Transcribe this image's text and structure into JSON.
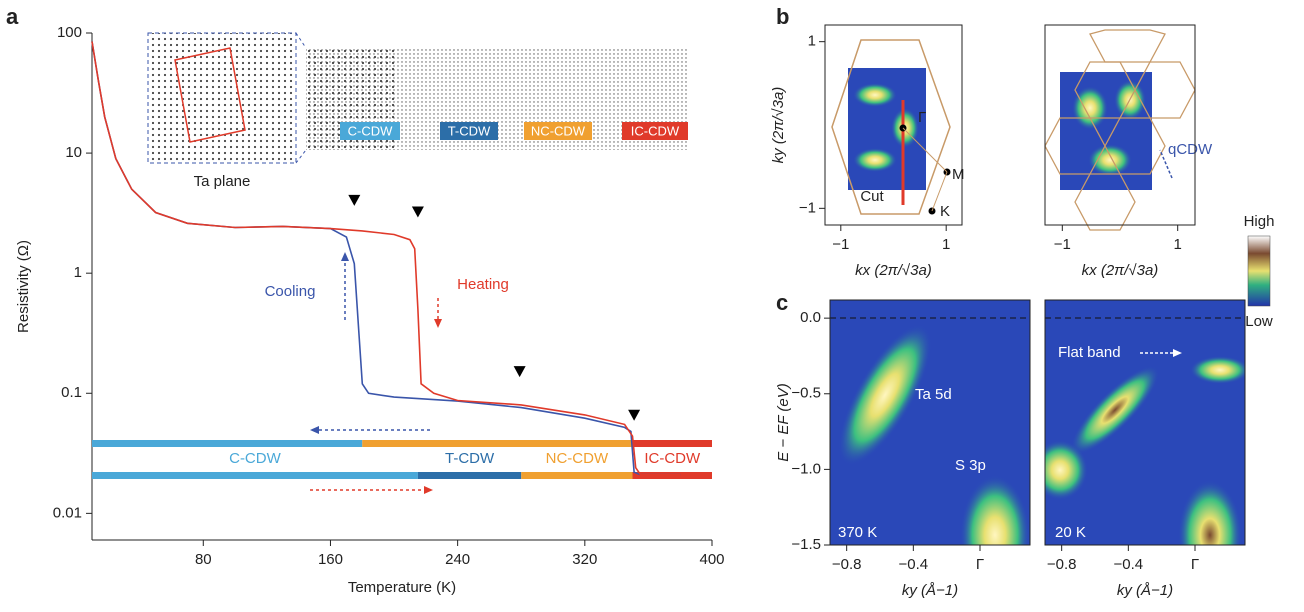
{
  "panel_labels": [
    "a",
    "b",
    "c"
  ],
  "colorbar": {
    "high": "High",
    "low": "Low"
  },
  "inset": {
    "lattice_label": "Ta plane",
    "phases": [
      {
        "label": "C-CDW",
        "color": "#4aa8d8"
      },
      {
        "label": "T-CDW",
        "color": "#2c6ea8"
      },
      {
        "label": "NC-CDW",
        "color": "#f0a030"
      },
      {
        "label": "IC-CDW",
        "color": "#e03a2a"
      }
    ]
  },
  "chart_data": [
    {
      "type": "line",
      "xlabel": "Temperature (K)",
      "ylabel": "Resistivity (Ω)",
      "log_y": true,
      "xlim": [
        10,
        400
      ],
      "ylim": [
        0.006,
        100
      ],
      "xticks": [
        80,
        160,
        240,
        320,
        400
      ],
      "yticks": [
        0.01,
        0.1,
        1,
        10,
        100
      ],
      "series": [
        {
          "name": "Cooling",
          "color": "#3a55aa",
          "x": [
            10,
            14,
            18,
            25,
            35,
            50,
            70,
            100,
            130,
            160,
            170,
            175,
            178,
            180,
            184,
            200,
            240,
            280,
            320,
            345,
            349,
            351,
            355,
            380
          ],
          "values": [
            85,
            40,
            20,
            9,
            5,
            3.2,
            2.6,
            2.4,
            2.45,
            2.35,
            2.0,
            1.2,
            0.3,
            0.12,
            0.1,
            0.093,
            0.086,
            0.076,
            0.062,
            0.052,
            0.048,
            0.022,
            0.021,
            0.021
          ]
        },
        {
          "name": "Heating",
          "color": "#e03a2a",
          "x": [
            10,
            14,
            18,
            25,
            35,
            50,
            70,
            100,
            130,
            160,
            180,
            200,
            210,
            213,
            215,
            217,
            225,
            240,
            280,
            320,
            345,
            350,
            352,
            355,
            380
          ],
          "values": [
            85,
            40,
            20,
            9,
            5,
            3.2,
            2.6,
            2.4,
            2.45,
            2.35,
            2.25,
            2.1,
            1.9,
            1.6,
            0.5,
            0.12,
            0.1,
            0.087,
            0.08,
            0.066,
            0.055,
            0.044,
            0.024,
            0.021,
            0.021
          ]
        }
      ],
      "transition_markers": [
        {
          "x": 175,
          "y": 4
        },
        {
          "x": 215,
          "y": 3.2
        },
        {
          "x": 279,
          "y": 0.15
        },
        {
          "x": 351,
          "y": 0.065
        }
      ],
      "phase_rows": [
        [
          {
            "start": 10,
            "end": 180,
            "color": "#4aa8d8"
          },
          {
            "start": 180,
            "end": 350,
            "color": "#f0a030"
          },
          {
            "start": 350,
            "end": 400,
            "color": "#e03a2a"
          }
        ],
        [
          {
            "label": "C-CDW",
            "start": 10,
            "end": 215,
            "color": "#4aa8d8"
          },
          {
            "label": "T-CDW",
            "start": 215,
            "end": 280,
            "color": "#2c6ea8"
          },
          {
            "label": "NC-CDW",
            "start": 280,
            "end": 350,
            "color": "#f0a030"
          },
          {
            "label": "IC-CDW",
            "start": 350,
            "end": 400,
            "color": "#e03a2a"
          }
        ]
      ]
    },
    {
      "type": "map",
      "xlabel": "kx (2π/√3a)",
      "ylabel": "ky (2π/√3a)",
      "xlim": [
        -1.3,
        1.3
      ],
      "ylim": [
        -1.2,
        1.2
      ],
      "xticks": [
        {
          "value": -1,
          "label": "−1"
        },
        1
      ],
      "yticks": [
        {
          "value": -1,
          "label": "−1"
        },
        1
      ],
      "annotations": [
        "Γ",
        "M",
        "K",
        "Cut"
      ]
    },
    {
      "type": "map",
      "xlabel": "kx (2π/√3a)",
      "xlim": [
        -1.3,
        1.3
      ],
      "ylim": [
        -1.2,
        1.2
      ],
      "xticks": [
        {
          "value": -1,
          "label": "−1"
        },
        1
      ],
      "annotations": [
        "qCDW"
      ]
    },
    {
      "type": "map",
      "xlabel": "ky (Å−1)",
      "ylabel": "E − EF (eV)",
      "xlim": [
        -0.9,
        0.3
      ],
      "ylim": [
        -1.5,
        0.12
      ],
      "xticks": [
        {
          "value": -0.8,
          "label": "−0.8"
        },
        {
          "value": -0.4,
          "label": "−0.4"
        },
        {
          "value": 0,
          "label": "Γ"
        }
      ],
      "yticks": [
        {
          "value": 0,
          "label": "0.0"
        },
        {
          "value": -0.5,
          "label": "−0.5"
        },
        {
          "value": -1,
          "label": "−1.0"
        },
        {
          "value": -1.5,
          "label": "−1.5"
        }
      ],
      "annotations": [
        "370 K",
        "Ta 5d",
        "S 3p"
      ]
    },
    {
      "type": "map",
      "xlabel": "ky (Å−1)",
      "xlim": [
        -0.9,
        0.3
      ],
      "ylim": [
        -1.5,
        0.12
      ],
      "xticks": [
        {
          "value": -0.8,
          "label": "−0.8"
        },
        {
          "value": -0.4,
          "label": "−0.4"
        },
        {
          "value": 0,
          "label": "Γ"
        }
      ],
      "annotations": [
        "20 K",
        "Flat band"
      ]
    }
  ]
}
